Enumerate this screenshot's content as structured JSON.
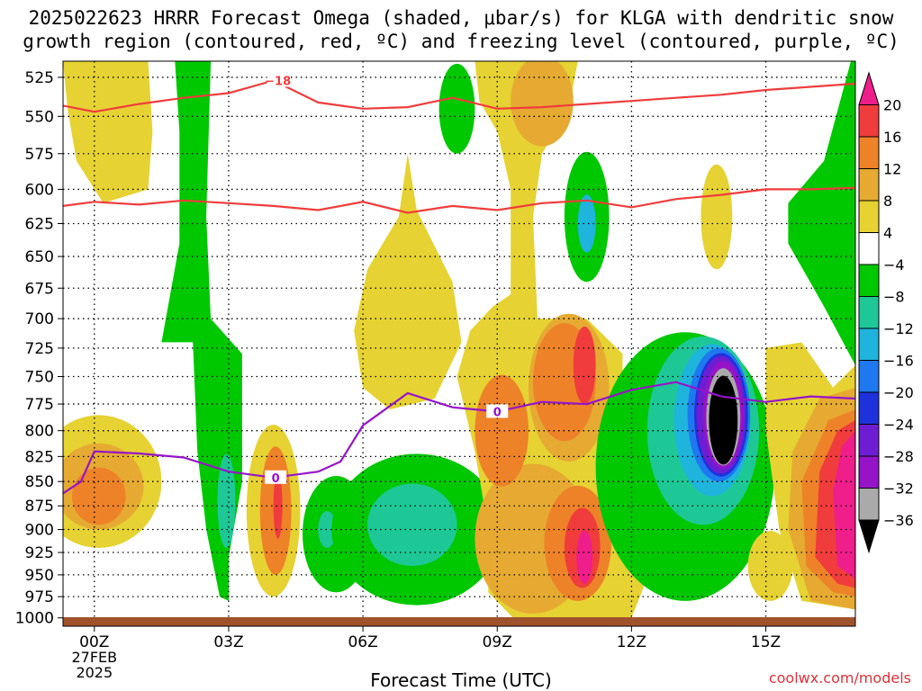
{
  "title": {
    "line1": "2025022623 HRRR Forecast Omega (shaded, μbar/s) for KLGA with dendritic snow",
    "line2": "growth region (contoured, red, ºC) and freezing level (contoured, purple, ºC)"
  },
  "credit": "coolwx.com/models",
  "chart_data": {
    "type": "time-height cross section",
    "title": "2025022623 HRRR Forecast Omega (shaded, μbar/s) for KLGA with dendritic snow growth region (contoured, red, ºC) and freezing level (contoured, purple, ºC)",
    "xlabel": "Forecast Time (UTC)",
    "ylabel": "",
    "x_hours_from_00Z": [
      -0.7,
      17
    ],
    "y_pressure_hPa": [
      515,
      1010
    ],
    "y_ticks": [
      525,
      550,
      575,
      600,
      625,
      650,
      675,
      700,
      725,
      750,
      775,
      800,
      825,
      850,
      875,
      900,
      925,
      950,
      975,
      1000
    ],
    "x_ticks": [
      {
        "hour": 0,
        "label": "00Z",
        "sub": [
          "27FEB",
          "2025"
        ]
      },
      {
        "hour": 3,
        "label": "03Z",
        "sub": []
      },
      {
        "hour": 6,
        "label": "06Z",
        "sub": []
      },
      {
        "hour": 9,
        "label": "09Z",
        "sub": []
      },
      {
        "hour": 12,
        "label": "12Z",
        "sub": []
      },
      {
        "hour": 15,
        "label": "15Z",
        "sub": []
      }
    ],
    "grid": true,
    "colorbar": {
      "labels": [
        "20",
        "16",
        "12",
        "8",
        "4",
        "−4",
        "−8",
        "−12",
        "−16",
        "−20",
        "−24",
        "−28",
        "−32",
        "−36"
      ],
      "colors": [
        "#ee1e8a",
        "#f03c3c",
        "#ee8228",
        "#e6aa32",
        "#e6d232",
        "#ffffff",
        "#00c800",
        "#1ec896",
        "#1eb4dc",
        "#1e78f0",
        "#1e32dc",
        "#6e1ed2",
        "#9614c8",
        "#aaaaaa",
        "#000000"
      ]
    },
    "contours": {
      "dendritic_minus18_label": "−18",
      "freezing_level_label": "0",
      "dgz_upper_minus18": [
        [
          -0.7,
          543
        ],
        [
          0,
          547
        ],
        [
          1,
          542
        ],
        [
          2,
          538
        ],
        [
          3,
          535
        ],
        [
          4,
          527
        ],
        [
          5,
          541
        ],
        [
          6,
          545
        ],
        [
          7,
          544
        ],
        [
          8,
          538
        ],
        [
          9,
          545
        ],
        [
          10,
          544
        ],
        [
          11,
          542
        ],
        [
          12,
          540
        ],
        [
          13,
          538
        ],
        [
          14,
          536
        ],
        [
          15,
          533
        ],
        [
          16,
          531
        ],
        [
          17,
          529
        ]
      ],
      "dgz_lower_minus12": [
        [
          -0.7,
          612
        ],
        [
          0,
          609
        ],
        [
          1,
          611
        ],
        [
          2,
          608
        ],
        [
          3,
          610
        ],
        [
          4,
          612
        ],
        [
          5,
          615
        ],
        [
          6,
          609
        ],
        [
          7,
          617
        ],
        [
          8,
          612
        ],
        [
          9,
          615
        ],
        [
          10,
          610
        ],
        [
          11,
          608
        ],
        [
          12,
          613
        ],
        [
          13,
          607
        ],
        [
          14,
          604
        ],
        [
          15,
          600
        ],
        [
          16,
          600
        ],
        [
          17,
          599
        ]
      ],
      "freezing_level_0C": [
        [
          -0.7,
          862
        ],
        [
          -0.3,
          850
        ],
        [
          0,
          820
        ],
        [
          1,
          822
        ],
        [
          2,
          826
        ],
        [
          3,
          840
        ],
        [
          4,
          846
        ],
        [
          5,
          840
        ],
        [
          5.5,
          830
        ],
        [
          6,
          795
        ],
        [
          7,
          765
        ],
        [
          8,
          778
        ],
        [
          9,
          782
        ],
        [
          10,
          773
        ],
        [
          11,
          775
        ],
        [
          12,
          762
        ],
        [
          13,
          755
        ],
        [
          14,
          768
        ],
        [
          15,
          773
        ],
        [
          16,
          768
        ],
        [
          17,
          770
        ]
      ]
    },
    "omega_regions_note": "shaded omega regions; negative (green/blue/purple/black) = ascent, positive (yellow/orange/red/magenta) = descent",
    "terrain_color": "#a0522d"
  },
  "axis_title": "Forecast Time (UTC)"
}
